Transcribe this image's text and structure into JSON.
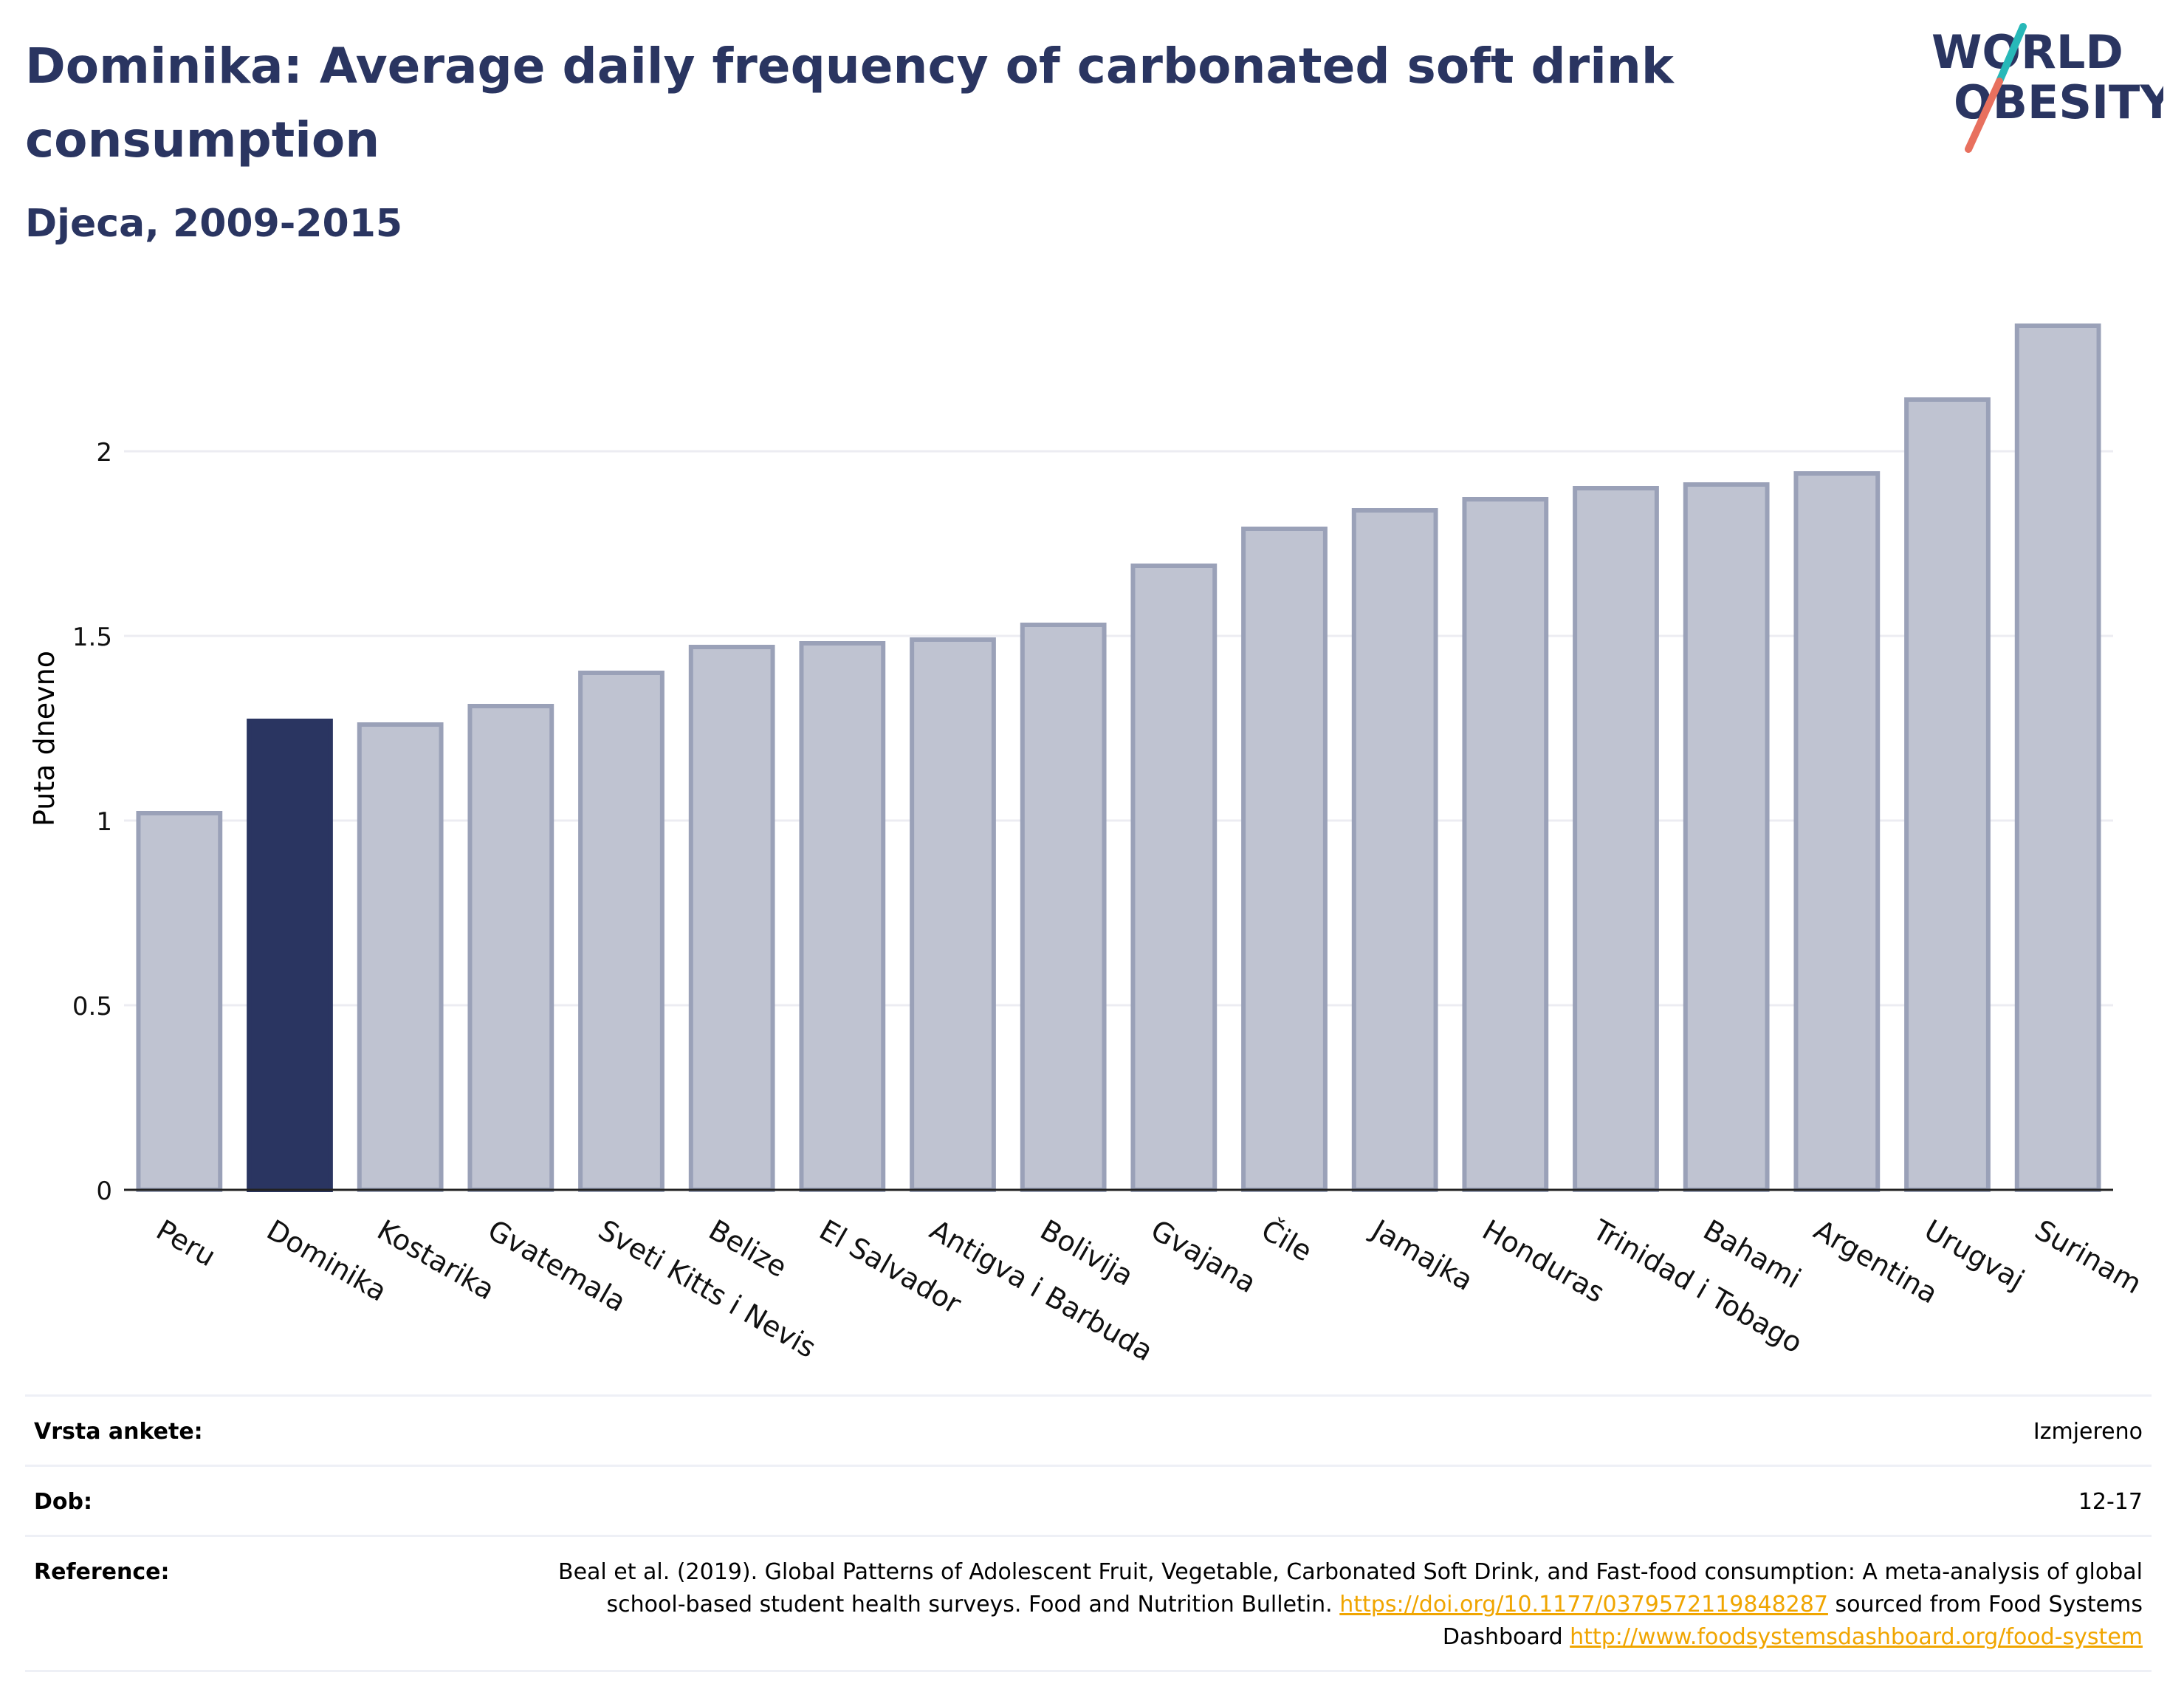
{
  "title": "Dominika: Average daily frequency of carbonated soft drink consumption",
  "subtitle": "Djeca, 2009-2015",
  "logo": {
    "line1": "WORLD",
    "line2": "OBESITY"
  },
  "colors": {
    "highlight": "#2a3561",
    "bar_fill": "#bfc3d1",
    "bar_stroke": "#9aa1b8",
    "title": "#2a3561",
    "link": "#f0a500",
    "logo_teal": "#27b8b8",
    "logo_red": "#e8705e"
  },
  "chart_data": {
    "type": "bar",
    "title": "",
    "ylabel": "Puta dnevno",
    "xlabel": "",
    "ylim": [
      0,
      2.45
    ],
    "yticks": [
      0,
      0.5,
      1,
      1.5,
      2
    ],
    "ytick_labels": [
      "0",
      "0.5",
      "1",
      "1.5",
      "2"
    ],
    "grid": true,
    "highlight": "Dominika",
    "categories": [
      "Peru",
      "Dominika",
      "Kostarika",
      "Gvatemala",
      "Sveti Kitts i Nevis",
      "Belize",
      "El Salvador",
      "Antigva i Barbuda",
      "Bolivija",
      "Gvajana",
      "Čile",
      "Jamajka",
      "Honduras",
      "Trinidad i Tobago",
      "Bahami",
      "Argentina",
      "Urugvaj",
      "Surinam"
    ],
    "values": [
      1.02,
      1.27,
      1.26,
      1.31,
      1.4,
      1.47,
      1.48,
      1.49,
      1.53,
      1.69,
      1.79,
      1.84,
      1.87,
      1.9,
      1.91,
      1.94,
      2.14,
      2.34
    ]
  },
  "info": {
    "survey_label": "Vrsta ankete:",
    "survey_value": "Izmjereno",
    "age_label": "Dob:",
    "age_value": "12-17",
    "reference_label": "Reference:",
    "reference_text_1": "Beal et al. (2019). Global Patterns of Adolescent Fruit, Vegetable, Carbonated Soft Drink, and Fast-food consumption: A meta-analysis of global school-based student health surveys. Food and Nutrition Bulletin. ",
    "reference_link_1": "https://doi.org/10.1177/0379572119848287",
    "reference_text_2": " sourced from Food Systems Dashboard ",
    "reference_link_2": "http://www.foodsystemsdashboard.org/food-system"
  }
}
